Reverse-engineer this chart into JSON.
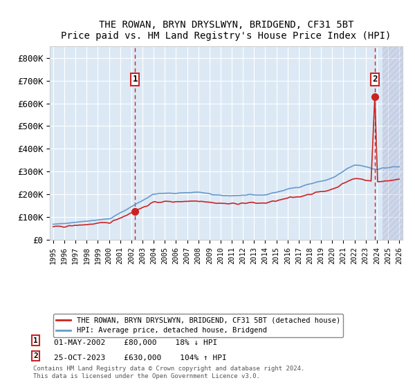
{
  "title": "THE ROWAN, BRYN DRYSLWYN, BRIDGEND, CF31 5BT",
  "subtitle": "Price paid vs. HM Land Registry's House Price Index (HPI)",
  "x_start_year": 1995,
  "x_end_year": 2026,
  "y_ticks": [
    0,
    100000,
    200000,
    300000,
    400000,
    500000,
    600000,
    700000,
    800000
  ],
  "y_labels": [
    "£0",
    "£100K",
    "£200K",
    "£300K",
    "£400K",
    "£500K",
    "£600K",
    "£700K",
    "£800K"
  ],
  "ylim": [
    0,
    850000
  ],
  "purchase1_year": 2002.33,
  "purchase1_price": 80000,
  "purchase1_label": "1",
  "purchase1_date": "01-MAY-2002",
  "purchase1_hpi_diff": "18% ↓ HPI",
  "purchase2_year": 2023.83,
  "purchase2_price": 630000,
  "purchase2_label": "2",
  "purchase2_date": "25-OCT-2023",
  "purchase2_hpi_diff": "104% ↑ HPI",
  "hpi_color": "#6699cc",
  "price_color": "#cc2222",
  "background_color": "#dce9f5",
  "plot_bg": "#dce9f5",
  "hatch_color": "#aaaacc",
  "legend_label_price": "THE ROWAN, BRYN DRYSLWYN, BRIDGEND, CF31 5BT (detached house)",
  "legend_label_hpi": "HPI: Average price, detached house, Bridgend",
  "footnote": "Contains HM Land Registry data © Crown copyright and database right 2024.\nThis data is licensed under the Open Government Licence v3.0."
}
